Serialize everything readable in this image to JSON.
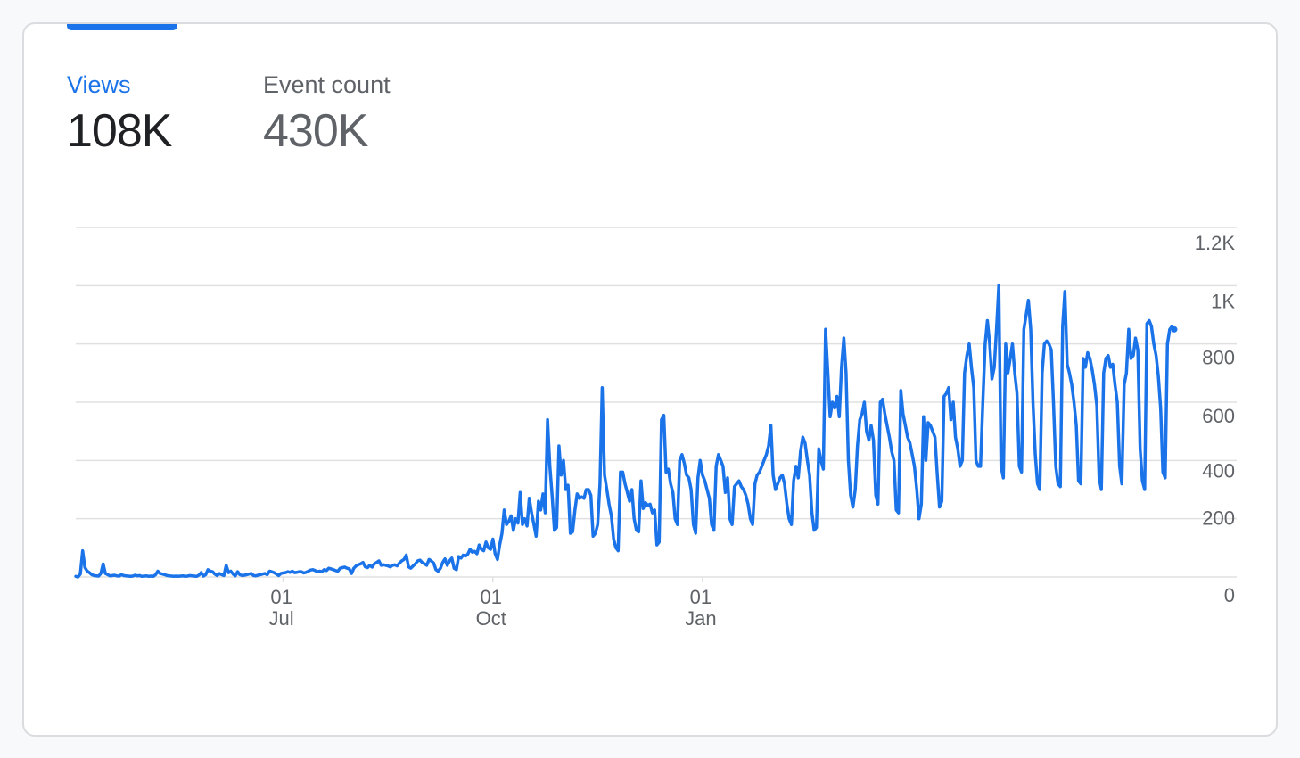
{
  "metrics": [
    {
      "label": "Views",
      "value": "108K"
    },
    {
      "label": "Event count",
      "value": "430K"
    }
  ],
  "colors": {
    "accent": "#1a73e8",
    "grid": "#e0e0e0",
    "text": "#5f6368"
  },
  "chart_data": {
    "type": "line",
    "ylim": [
      0,
      1200
    ],
    "y_ticks": [
      {
        "value": 0,
        "label": "0"
      },
      {
        "value": 200,
        "label": "200"
      },
      {
        "value": 400,
        "label": "400"
      },
      {
        "value": 600,
        "label": "600"
      },
      {
        "value": 800,
        "label": "800"
      },
      {
        "value": 1000,
        "label": "1K"
      },
      {
        "value": 1200,
        "label": "1.2K"
      }
    ],
    "x_ticks": [
      {
        "date": "Jul 01",
        "day": "01",
        "month": "Jul"
      },
      {
        "date": "Oct 01",
        "day": "01",
        "month": "Oct"
      },
      {
        "date": "Jan 01",
        "day": "01",
        "month": "Jan"
      }
    ],
    "x_start": "Apr 01",
    "x_end": "Mar 29",
    "grid": true,
    "series": [
      {
        "color": "#1a73e8",
        "values": [
          2,
          0,
          10,
          90,
          33,
          20,
          15,
          8,
          5,
          4,
          3,
          12,
          45,
          12,
          8,
          4,
          5,
          6,
          4,
          3,
          8,
          5,
          4,
          3,
          2,
          3,
          6,
          4,
          5,
          2,
          3,
          4,
          2,
          3,
          2,
          8,
          20,
          12,
          10,
          8,
          5,
          4,
          3,
          2,
          3,
          2,
          3,
          4,
          2,
          3,
          5,
          4,
          3,
          2,
          6,
          15,
          3,
          8,
          25,
          20,
          18,
          10,
          5,
          12,
          8,
          5,
          40,
          15,
          20,
          10,
          4,
          18,
          8,
          5,
          6,
          8,
          10,
          12,
          5,
          4,
          6,
          8,
          10,
          12,
          8,
          20,
          18,
          15,
          10,
          5,
          12,
          14,
          15,
          18,
          16,
          20,
          15,
          16,
          18,
          18,
          14,
          16,
          20,
          24,
          25,
          22,
          18,
          20,
          18,
          25,
          22,
          30,
          28,
          25,
          22,
          20,
          30,
          32,
          34,
          30,
          28,
          12,
          30,
          38,
          42,
          45,
          50,
          35,
          32,
          40,
          34,
          45,
          50,
          55,
          40,
          42,
          40,
          38,
          35,
          40,
          42,
          38,
          48,
          55,
          60,
          75,
          35,
          30,
          38,
          45,
          55,
          58,
          50,
          45,
          40,
          60,
          55,
          48,
          25,
          20,
          30,
          50,
          62,
          40,
          55,
          65,
          30,
          25,
          70,
          65,
          75,
          72,
          78,
          95,
          85,
          88,
          80,
          110,
          95,
          90,
          120,
          100,
          95,
          130,
          80,
          60,
          110,
          150,
          230,
          180,
          190,
          210,
          160,
          200,
          185,
          290,
          180,
          200,
          175,
          270,
          220,
          180,
          140,
          260,
          230,
          285,
          220,
          540,
          380,
          280,
          160,
          170,
          450,
          350,
          400,
          300,
          315,
          150,
          155,
          230,
          285,
          270,
          275,
          270,
          300,
          300,
          280,
          140,
          150,
          180,
          320,
          650,
          350,
          300,
          250,
          210,
          130,
          100,
          90,
          360,
          360,
          320,
          290,
          260,
          300,
          200,
          160,
          155,
          330,
          235,
          255,
          245,
          250,
          220,
          230,
          110,
          120,
          540,
          555,
          360,
          370,
          320,
          290,
          200,
          180,
          400,
          420,
          390,
          350,
          340,
          300,
          180,
          150,
          340,
          400,
          350,
          330,
          300,
          270,
          180,
          160,
          380,
          420,
          400,
          380,
          290,
          340,
          200,
          180,
          310,
          320,
          330,
          310,
          300,
          280,
          250,
          200,
          180,
          320,
          350,
          360,
          380,
          400,
          420,
          450,
          520,
          350,
          300,
          320,
          340,
          350,
          320,
          250,
          200,
          180,
          330,
          380,
          340,
          430,
          480,
          460,
          400,
          350,
          220,
          160,
          170,
          440,
          400,
          370,
          850,
          700,
          550,
          600,
          580,
          620,
          550,
          720,
          820,
          700,
          400,
          280,
          240,
          300,
          450,
          540,
          560,
          600,
          500,
          470,
          520,
          470,
          280,
          250,
          600,
          610,
          560,
          520,
          480,
          430,
          400,
          230,
          220,
          640,
          560,
          520,
          480,
          460,
          420,
          380,
          300,
          200,
          250,
          550,
          400,
          530,
          520,
          500,
          480,
          350,
          240,
          260,
          620,
          630,
          650,
          540,
          600,
          480,
          440,
          380,
          400,
          700,
          760,
          800,
          720,
          650,
          400,
          380,
          380,
          600,
          800,
          880,
          800,
          680,
          720,
          850,
          1000,
          380,
          340,
          800,
          700,
          750,
          800,
          700,
          630,
          380,
          360,
          850,
          900,
          950,
          850,
          600,
          420,
          320,
          300,
          700,
          800,
          810,
          800,
          780,
          600,
          380,
          320,
          310,
          860,
          980,
          730,
          700,
          660,
          600,
          520,
          330,
          320,
          750,
          720,
          770,
          750,
          710,
          660,
          590,
          340,
          300,
          700,
          750,
          760,
          720,
          730,
          660,
          600,
          380,
          320,
          660,
          700,
          850,
          750,
          760,
          820,
          780,
          440,
          330,
          300,
          870,
          880,
          860,
          800,
          760,
          690,
          580,
          360,
          340,
          800,
          850,
          860,
          850
        ]
      }
    ]
  }
}
